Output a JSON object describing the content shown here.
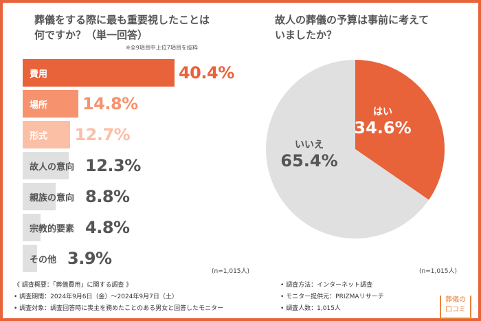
{
  "colors": {
    "accent": "#e8623a",
    "mid": "#f6926e",
    "light": "#fbbfa6",
    "gray": "#e0e0e0",
    "text": "#555555"
  },
  "left_title_1": "葬儀をする際に最も重要視したことは",
  "left_title_2": "何ですか？（単一回答）",
  "left_note": "※全9項目中上位7項目を抜粋",
  "left_n": "(n=1,015人)",
  "right_title_1": "故人の葬儀の予算は事前に考えて",
  "right_title_2": "いましたか？",
  "right_n": "(n=1,015人)",
  "chart_data": [
    {
      "type": "bar",
      "orientation": "horizontal",
      "title": "葬儀をする際に最も重要視したことは何ですか？（単一回答）",
      "categories": [
        "費用",
        "場所",
        "形式",
        "故人の意向",
        "親族の意向",
        "宗教的要素",
        "その他"
      ],
      "values": [
        40.4,
        14.8,
        12.7,
        12.3,
        8.8,
        4.8,
        3.9
      ],
      "labels": [
        "40.4%",
        "14.8%",
        "12.7%",
        "12.3%",
        "8.8%",
        "4.8%",
        "3.9%"
      ],
      "colors": [
        "#e8623a",
        "#f6926e",
        "#fbbfa6",
        "#e0e0e0",
        "#e0e0e0",
        "#e0e0e0",
        "#e0e0e0"
      ],
      "label_colors": [
        "#ffffff",
        "#ffffff",
        "#ffffff",
        "#555555",
        "#555555",
        "#555555",
        "#555555"
      ],
      "pct_colors": [
        "#e8623a",
        "#f6926e",
        "#fbbfa6",
        "#555555",
        "#555555",
        "#555555",
        "#555555"
      ]
    },
    {
      "type": "pie",
      "title": "故人の葬儀の予算は事前に考えていましたか？",
      "categories": [
        "はい",
        "いいえ"
      ],
      "values": [
        34.6,
        65.4
      ],
      "labels": [
        "34.6%",
        "65.4%"
      ],
      "colors": [
        "#e8623a",
        "#e0e0e0"
      ]
    }
  ],
  "footer": {
    "left": [
      "《 調査概要：「葬儀費用」に関する調査 》",
      "• 調査期間：2024年9月6日（金）～2024年9月7日（土）",
      "• 調査対象：調査回答時に喪主を務めたことのある男女と回答したモニター"
    ],
    "right": [
      "• 調査方法：インターネット調査",
      "• モニター提供元：PRIZMAリサーチ",
      "• 調査人数：1,015人"
    ]
  },
  "logo": {
    "line1": "葬儀の",
    "line2": "口コミ"
  }
}
